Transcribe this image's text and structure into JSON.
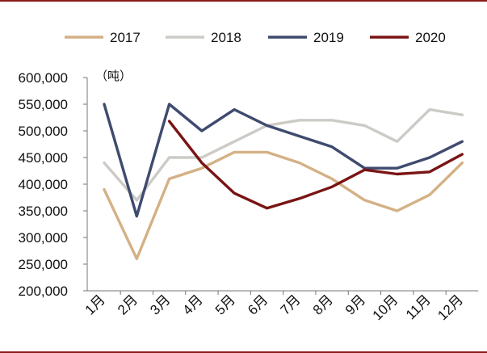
{
  "chart_data": {
    "type": "line",
    "unit": "（吨）",
    "categories": [
      "1月",
      "2月",
      "3月",
      "4月",
      "5月",
      "6月",
      "7月",
      "8月",
      "9月",
      "10月",
      "11月",
      "12月"
    ],
    "ylim": [
      200000,
      600000
    ],
    "yticks": [
      "200,000",
      "250,000",
      "300,000",
      "350,000",
      "400,000",
      "450,000",
      "500,000",
      "550,000",
      "600,000"
    ],
    "ytick_values": [
      200000,
      250000,
      300000,
      350000,
      400000,
      450000,
      500000,
      550000,
      600000
    ],
    "legend_position": "top",
    "series": [
      {
        "name": "2017",
        "color": "#d4b185",
        "values": [
          390000,
          260000,
          410000,
          430000,
          460000,
          460000,
          440000,
          410000,
          370000,
          350000,
          380000,
          440000
        ]
      },
      {
        "name": "2018",
        "color": "#cccbc6",
        "values": [
          440000,
          370000,
          450000,
          450000,
          480000,
          510000,
          520000,
          520000,
          510000,
          480000,
          540000,
          530000
        ]
      },
      {
        "name": "2019",
        "color": "#3f4b6e",
        "values": [
          550000,
          340000,
          550000,
          500000,
          540000,
          510000,
          490000,
          470000,
          430000,
          430000,
          450000,
          480000
        ]
      },
      {
        "name": "2020",
        "color": "#7a1414",
        "values": [
          null,
          null,
          518000,
          440000,
          383000,
          355000,
          373000,
          395000,
          427000,
          419000,
          423000,
          456000
        ]
      }
    ]
  }
}
